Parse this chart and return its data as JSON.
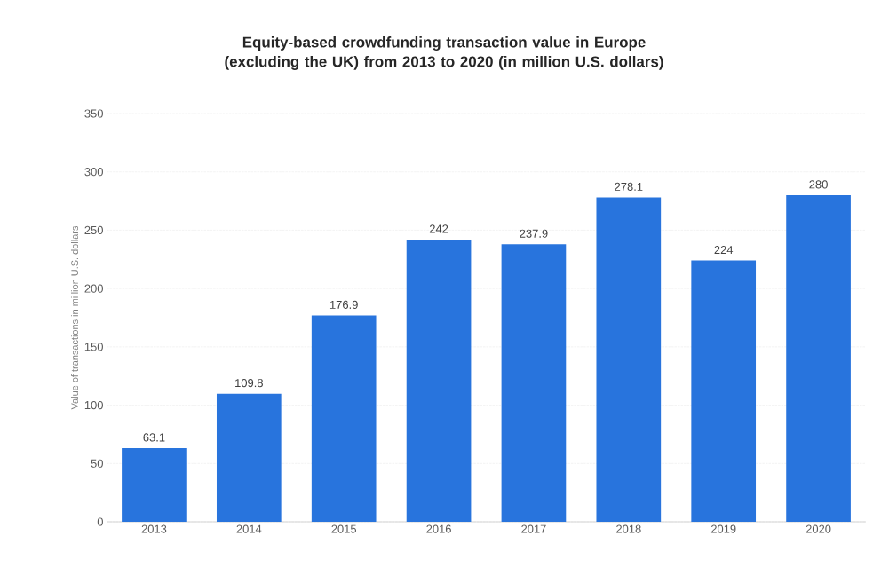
{
  "chart_data": {
    "type": "bar",
    "title": "Equity-based crowdfunding transaction value in Europe (excluding the UK) from 2013 to 2020 (in million U.S. dollars)",
    "ylabel": "Value of transactions in million U.S. dollars",
    "categories": [
      "2013",
      "2014",
      "2015",
      "2016",
      "2017",
      "2018",
      "2019",
      "2020"
    ],
    "values": [
      63.1,
      109.8,
      176.9,
      242,
      237.9,
      278.1,
      224,
      280
    ],
    "color": "#2874dd",
    "ylim": [
      0,
      350
    ],
    "yticks": [
      0,
      50,
      100,
      150,
      200,
      250,
      300,
      350
    ],
    "grid": "y",
    "data_labels": true
  }
}
